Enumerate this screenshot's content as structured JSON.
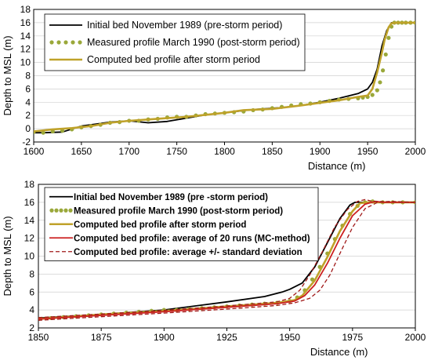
{
  "chart_data": [
    {
      "type": "line",
      "xlabel": "Distance (m)",
      "ylabel": "Depth to MSL (m)",
      "xlim": [
        1600,
        2000
      ],
      "ylim": [
        -2,
        18
      ],
      "xticks": [
        "1600",
        "1650",
        "1700",
        "1750",
        "1800",
        "1850",
        "1900",
        "1950",
        "2000"
      ],
      "yticks": [
        "-2",
        "0",
        "2",
        "4",
        "6",
        "8",
        "10",
        "12",
        "14",
        "16",
        "18"
      ],
      "grid": "horizontal",
      "legend_position": "top-left",
      "series": [
        {
          "name": "Initial bed November 1989 (pre-storm period)",
          "style": "solid",
          "color": "#000000",
          "x": [
            1600,
            1610,
            1630,
            1650,
            1680,
            1700,
            1720,
            1740,
            1760,
            1780,
            1800,
            1830,
            1860,
            1880,
            1900,
            1920,
            1940,
            1950,
            1955,
            1960,
            1965,
            1970,
            1975,
            2000
          ],
          "y": [
            -0.6,
            -0.6,
            -0.5,
            0.4,
            1.0,
            1.2,
            0.9,
            1.1,
            1.6,
            2.1,
            2.4,
            2.9,
            3.2,
            3.5,
            4.0,
            4.6,
            5.3,
            6.0,
            7.0,
            9.0,
            12.5,
            14.8,
            16.0,
            16.0
          ]
        },
        {
          "name": "Measured profile March 1990 (post-storm period)",
          "style": "dotted",
          "color": "#9aa83a",
          "x": [
            1600,
            1610,
            1620,
            1630,
            1640,
            1650,
            1660,
            1670,
            1680,
            1690,
            1700,
            1710,
            1720,
            1730,
            1740,
            1750,
            1760,
            1770,
            1780,
            1790,
            1800,
            1810,
            1820,
            1830,
            1840,
            1850,
            1860,
            1870,
            1880,
            1890,
            1900,
            1910,
            1920,
            1930,
            1940,
            1945,
            1950,
            1955,
            1960,
            1963,
            1966,
            1969,
            1972,
            1975,
            1978,
            1982,
            1986,
            1990,
            1995,
            2000
          ],
          "y": [
            -0.5,
            -0.6,
            -0.4,
            -0.3,
            -0.1,
            0.2,
            0.4,
            0.6,
            0.9,
            1.0,
            1.2,
            1.2,
            1.4,
            1.5,
            1.7,
            1.8,
            1.8,
            2.0,
            2.2,
            2.3,
            2.4,
            2.5,
            2.6,
            2.8,
            2.9,
            3.1,
            3.3,
            3.5,
            3.7,
            3.8,
            4.0,
            4.2,
            4.4,
            4.5,
            4.6,
            4.7,
            4.8,
            5.1,
            5.8,
            7.0,
            8.8,
            11.2,
            13.7,
            15.4,
            16.0,
            16.0,
            16.0,
            16.0,
            16.0,
            16.0
          ]
        },
        {
          "name": "Computed bed profile after storm period",
          "style": "solid",
          "color": "#bfa22a",
          "x": [
            1600,
            1620,
            1640,
            1660,
            1680,
            1700,
            1720,
            1740,
            1760,
            1780,
            1800,
            1820,
            1850,
            1880,
            1900,
            1920,
            1940,
            1950,
            1955,
            1960,
            1965,
            1968,
            1972,
            1975,
            1980,
            2000
          ],
          "y": [
            -0.4,
            -0.1,
            0.1,
            0.4,
            0.9,
            1.2,
            1.4,
            1.6,
            1.8,
            2.1,
            2.4,
            2.8,
            3.0,
            3.5,
            3.9,
            4.3,
            4.8,
            5.0,
            6.0,
            8.5,
            11.5,
            13.5,
            15.3,
            15.9,
            16.0,
            16.0
          ]
        }
      ]
    },
    {
      "type": "line",
      "xlabel": "Distance (m)",
      "ylabel": "Depth to MSL (m)",
      "xlim": [
        1850,
        2000
      ],
      "ylim": [
        2,
        18
      ],
      "xticks": [
        "1850",
        "1875",
        "1900",
        "1925",
        "1950",
        "1975",
        "2000"
      ],
      "yticks": [
        "2",
        "4",
        "6",
        "8",
        "10",
        "12",
        "14",
        "16",
        "18"
      ],
      "grid": "horizontal",
      "legend_position": "top-left",
      "series": [
        {
          "name": "Initial bed November 1989 (pre -storm period)",
          "style": "solid",
          "color": "#000000",
          "x": [
            1850,
            1875,
            1900,
            1925,
            1940,
            1947,
            1950,
            1955,
            1960,
            1965,
            1970,
            1974,
            1976,
            2000
          ],
          "y": [
            3.1,
            3.5,
            4.0,
            4.9,
            5.5,
            6.0,
            6.3,
            7.0,
            8.8,
            11.5,
            14.2,
            15.7,
            16.0,
            16.0
          ]
        },
        {
          "name": "Measured profile March 1990 (post-storm period)",
          "style": "dotted",
          "color": "#9aa83a",
          "x": [
            1850,
            1855,
            1860,
            1865,
            1870,
            1875,
            1880,
            1885,
            1890,
            1895,
            1900,
            1905,
            1910,
            1915,
            1920,
            1925,
            1930,
            1935,
            1940,
            1945,
            1950,
            1953,
            1956,
            1959,
            1962,
            1965,
            1968,
            1971,
            1974,
            1977,
            1980,
            1983,
            1987,
            1991,
            1995,
            2000
          ],
          "y": [
            3.0,
            3.1,
            3.2,
            3.3,
            3.4,
            3.5,
            3.6,
            3.7,
            3.8,
            3.9,
            4.0,
            4.0,
            4.1,
            4.2,
            4.3,
            4.4,
            4.5,
            4.6,
            4.7,
            4.8,
            5.0,
            5.4,
            6.2,
            7.4,
            8.8,
            10.3,
            11.9,
            13.4,
            14.7,
            15.6,
            16.0,
            16.1,
            16.0,
            16.0,
            16.0,
            16.0
          ]
        },
        {
          "name": "Computed bed profile after storm period",
          "style": "solid",
          "color": "#bfa22a",
          "x": [
            1850,
            1875,
            1900,
            1925,
            1945,
            1952,
            1955,
            1960,
            1965,
            1970,
            1975,
            1978,
            1981,
            2000
          ],
          "y": [
            3.0,
            3.5,
            3.9,
            4.4,
            4.8,
            5.1,
            5.6,
            7.3,
            9.9,
            12.8,
            15.0,
            15.9,
            16.0,
            16.0
          ]
        },
        {
          "name": "Computed bed profile: average of 20 runs (MC-method)",
          "style": "solid",
          "color": "#cc2020",
          "x": [
            1850,
            1875,
            1900,
            1925,
            1945,
            1952,
            1956,
            1960,
            1965,
            1970,
            1975,
            1980,
            1984,
            1987,
            2000
          ],
          "y": [
            3.0,
            3.4,
            3.8,
            4.3,
            4.7,
            5.0,
            5.6,
            6.8,
            9.2,
            12.0,
            14.5,
            15.8,
            16.1,
            16.0,
            16.0
          ]
        },
        {
          "name": "Computed bed profile: average +/- standard deviation",
          "style": "dashed",
          "color": "#a01818",
          "x": [
            1850,
            1875,
            1900,
            1925,
            1945,
            1950,
            1954,
            1958,
            1963,
            1968,
            1973,
            1977,
            1980,
            1983,
            2000
          ],
          "y": [
            3.15,
            3.55,
            3.95,
            4.45,
            4.9,
            5.3,
            6.2,
            7.9,
            10.5,
            13.3,
            15.2,
            16.1,
            16.3,
            16.1,
            16.0
          ]
        },
        {
          "name": "",
          "style": "dashed",
          "color": "#a01818",
          "x": [
            1850,
            1875,
            1900,
            1925,
            1945,
            1952,
            1958,
            1962,
            1966,
            1970,
            1975,
            1980,
            1985,
            1990,
            2000
          ],
          "y": [
            2.85,
            3.25,
            3.65,
            4.1,
            4.5,
            4.8,
            5.3,
            6.2,
            7.9,
            10.3,
            13.2,
            15.3,
            16.0,
            16.1,
            16.0
          ]
        }
      ]
    }
  ]
}
